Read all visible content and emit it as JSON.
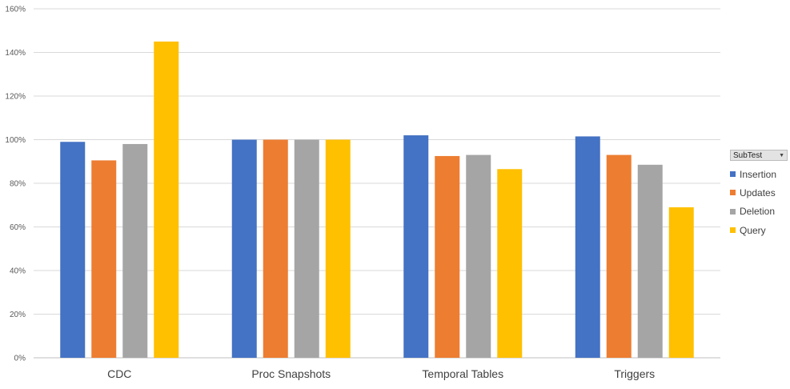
{
  "chart_data": {
    "type": "bar",
    "categories": [
      "CDC",
      "Proc Snapshots",
      "Temporal Tables",
      "Triggers"
    ],
    "series": [
      {
        "name": "Insertion",
        "color": "#4472C4",
        "values": [
          99,
          100,
          102,
          101.5
        ]
      },
      {
        "name": "Updates",
        "color": "#ED7D31",
        "values": [
          90.5,
          100,
          92.5,
          93
        ]
      },
      {
        "name": "Deletion",
        "color": "#A5A5A5",
        "values": [
          98,
          100,
          93,
          88.5
        ]
      },
      {
        "name": "Query",
        "color": "#FFC000",
        "values": [
          145,
          100,
          86.5,
          69
        ]
      }
    ],
    "ylim": [
      0,
      160
    ],
    "yticks": [
      0,
      20,
      40,
      60,
      80,
      100,
      120,
      140,
      160
    ],
    "ytick_labels": [
      "0%",
      "20%",
      "40%",
      "60%",
      "80%",
      "100%",
      "120%",
      "140%",
      "160%"
    ],
    "grid": true,
    "legend_position": "right"
  },
  "legend": {
    "filter_label": "SubTest",
    "filter_arrow": "▼"
  }
}
